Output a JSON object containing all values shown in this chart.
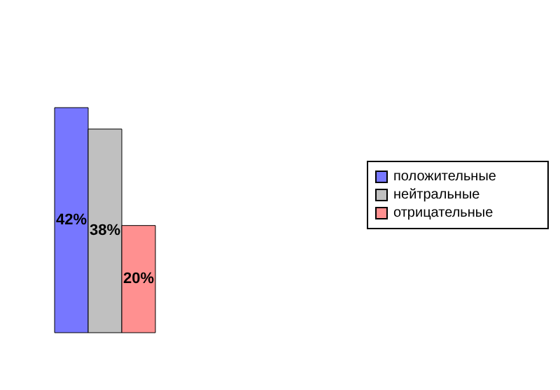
{
  "chart_data": {
    "type": "bar",
    "categories": [
      null
    ],
    "series": [
      {
        "name": "положительные",
        "color": "#7777ff",
        "values": [
          42
        ],
        "value_labels": [
          "42%"
        ]
      },
      {
        "name": "нейтральные",
        "color": "#c0c0c0",
        "values": [
          38
        ],
        "value_labels": [
          "38%"
        ]
      },
      {
        "name": "отрицательные",
        "color": "#ff9090",
        "values": [
          20
        ],
        "value_labels": [
          "20%"
        ]
      }
    ],
    "legend": "right",
    "grid": false
  }
}
